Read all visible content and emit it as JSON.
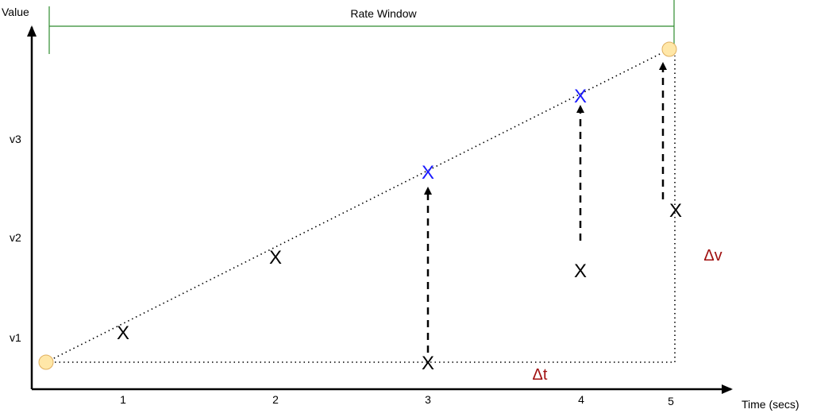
{
  "axes": {
    "y_label": "Value",
    "x_label": "Time (secs)",
    "x_ticks": [
      "1",
      "2",
      "3",
      "4",
      "5"
    ],
    "y_ticks": [
      "v1",
      "v2",
      "v3"
    ]
  },
  "window": {
    "label": "Rate Window",
    "color": "#2e8b2e"
  },
  "marks": {
    "glyph": "X",
    "black_color": "#000000",
    "blue_color": "#1a1aff"
  },
  "endpoint_color": "#ffe7a8",
  "endpoint_stroke": "#e0b060",
  "deltas": {
    "dt": "Δt",
    "dv": "Δv",
    "color": "#a01010"
  }
}
